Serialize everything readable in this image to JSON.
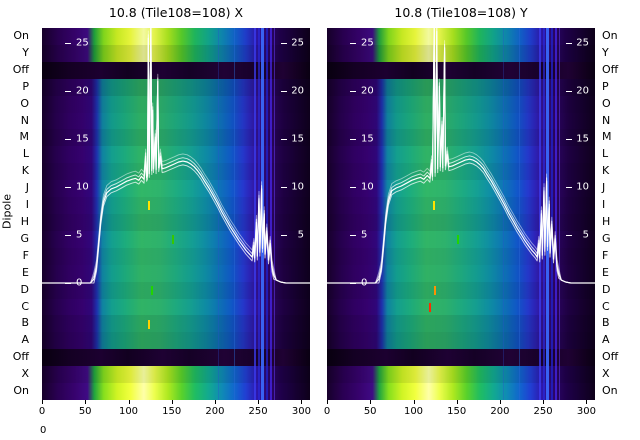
{
  "ylabel": "Dipole",
  "axes_extra": {
    "stray_zero_label": "0"
  },
  "chart_data": {
    "type": "heatmap",
    "description": "Per-dipole waterfall spectra with overlaid white bandpass curves for tile 10.8 (Tile108), X and Y polarisations",
    "x_axis": {
      "ticks": [
        0,
        50,
        100,
        150,
        200,
        250,
        300
      ],
      "range": [
        0,
        310
      ]
    },
    "db_ticks": [
      25,
      20,
      15,
      10,
      5,
      0
    ],
    "panels": [
      {
        "id": "x",
        "title": "10.8 (Tile108=108) X",
        "curve": [
          [
            0,
            0
          ],
          [
            56,
            0
          ],
          [
            60,
            0.4
          ],
          [
            63,
            1.6
          ],
          [
            65,
            3.5
          ],
          [
            68,
            6.5
          ],
          [
            71,
            8.4
          ],
          [
            75,
            9.4
          ],
          [
            80,
            9.8
          ],
          [
            86,
            10.0
          ],
          [
            92,
            10.3
          ],
          [
            98,
            10.6
          ],
          [
            104,
            10.8
          ],
          [
            108,
            10.9
          ],
          [
            112,
            10.7
          ],
          [
            115,
            11.1
          ],
          [
            118,
            10.8
          ],
          [
            120,
            13.2
          ],
          [
            121,
            11.0
          ],
          [
            122,
            11.2
          ],
          [
            123,
            25.5
          ],
          [
            124,
            11.4
          ],
          [
            126,
            26.8
          ],
          [
            127,
            11.7
          ],
          [
            128,
            18.0
          ],
          [
            129,
            11.9
          ],
          [
            131,
            15.2
          ],
          [
            132,
            11.8
          ],
          [
            134,
            21.0
          ],
          [
            135,
            12.0
          ],
          [
            137,
            13.2
          ],
          [
            139,
            11.9
          ],
          [
            143,
            12.0
          ],
          [
            148,
            12.2
          ],
          [
            153,
            12.4
          ],
          [
            158,
            12.6
          ],
          [
            163,
            12.7
          ],
          [
            168,
            12.6
          ],
          [
            172,
            12.4
          ],
          [
            176,
            12.1
          ],
          [
            180,
            11.7
          ],
          [
            184,
            11.2
          ],
          [
            188,
            10.6
          ],
          [
            193,
            9.9
          ],
          [
            198,
            9.1
          ],
          [
            203,
            8.3
          ],
          [
            208,
            7.4
          ],
          [
            213,
            6.6
          ],
          [
            218,
            5.8
          ],
          [
            223,
            5.1
          ],
          [
            228,
            4.4
          ],
          [
            232,
            3.9
          ],
          [
            236,
            3.4
          ],
          [
            240,
            3.0
          ],
          [
            243,
            2.7
          ],
          [
            245,
            3.9
          ],
          [
            246,
            2.6
          ],
          [
            248,
            6.3
          ],
          [
            249,
            2.8
          ],
          [
            251,
            8.8
          ],
          [
            252,
            3.2
          ],
          [
            254,
            9.8
          ],
          [
            255,
            3.6
          ],
          [
            257,
            7.2
          ],
          [
            258,
            3.0
          ],
          [
            260,
            5.4
          ],
          [
            262,
            2.4
          ],
          [
            264,
            4.1
          ],
          [
            266,
            1.6
          ],
          [
            268,
            0.8
          ],
          [
            271,
            0.3
          ],
          [
            276,
            0.1
          ],
          [
            282,
            0
          ],
          [
            310,
            0
          ]
        ],
        "marks": [
          {
            "ch": 123,
            "row": 10,
            "color": "#ffe300"
          },
          {
            "ch": 123,
            "row": 17,
            "color": "#ffd000"
          },
          {
            "ch": 126,
            "row": 15,
            "color": "#22d400"
          },
          {
            "ch": 150,
            "row": 12,
            "color": "#35c800"
          }
        ]
      },
      {
        "id": "y",
        "title": "10.8 (Tile108=108) Y",
        "curve": [
          [
            0,
            0
          ],
          [
            56,
            0
          ],
          [
            60,
            0.4
          ],
          [
            63,
            1.6
          ],
          [
            65,
            3.5
          ],
          [
            68,
            6.6
          ],
          [
            71,
            8.5
          ],
          [
            75,
            9.6
          ],
          [
            80,
            9.9
          ],
          [
            86,
            10.1
          ],
          [
            92,
            10.4
          ],
          [
            98,
            10.7
          ],
          [
            104,
            10.9
          ],
          [
            108,
            11.0
          ],
          [
            112,
            10.8
          ],
          [
            116,
            11.2
          ],
          [
            119,
            10.9
          ],
          [
            121,
            12.5
          ],
          [
            122,
            11.1
          ],
          [
            124,
            26.8
          ],
          [
            125,
            11.5
          ],
          [
            127,
            26.2
          ],
          [
            128,
            11.9
          ],
          [
            130,
            20.5
          ],
          [
            131,
            12.1
          ],
          [
            133,
            16.5
          ],
          [
            134,
            12.0
          ],
          [
            136,
            24.5
          ],
          [
            137,
            12.2
          ],
          [
            139,
            13.4
          ],
          [
            141,
            12.1
          ],
          [
            145,
            12.2
          ],
          [
            150,
            12.4
          ],
          [
            155,
            12.6
          ],
          [
            160,
            12.8
          ],
          [
            165,
            12.9
          ],
          [
            169,
            12.8
          ],
          [
            173,
            12.6
          ],
          [
            177,
            12.3
          ],
          [
            181,
            11.9
          ],
          [
            185,
            11.3
          ],
          [
            190,
            10.6
          ],
          [
            195,
            9.8
          ],
          [
            200,
            9.0
          ],
          [
            205,
            8.2
          ],
          [
            210,
            7.3
          ],
          [
            215,
            6.5
          ],
          [
            220,
            5.7
          ],
          [
            225,
            5.0
          ],
          [
            229,
            4.4
          ],
          [
            233,
            3.9
          ],
          [
            237,
            3.4
          ],
          [
            241,
            3.0
          ],
          [
            243,
            2.7
          ],
          [
            245,
            4.1
          ],
          [
            246,
            2.6
          ],
          [
            248,
            7.2
          ],
          [
            249,
            2.9
          ],
          [
            251,
            9.6
          ],
          [
            252,
            3.3
          ],
          [
            254,
            10.6
          ],
          [
            255,
            3.8
          ],
          [
            257,
            8.2
          ],
          [
            258,
            3.1
          ],
          [
            260,
            6.1
          ],
          [
            262,
            2.5
          ],
          [
            264,
            4.6
          ],
          [
            266,
            1.7
          ],
          [
            268,
            0.9
          ],
          [
            271,
            0.3
          ],
          [
            276,
            0.1
          ],
          [
            282,
            0
          ],
          [
            310,
            0
          ]
        ],
        "marks": [
          {
            "ch": 123,
            "row": 10,
            "color": "#ffe300"
          },
          {
            "ch": 118,
            "row": 16,
            "color": "#ff2a00"
          },
          {
            "ch": 124,
            "row": 15,
            "color": "#ff9100"
          },
          {
            "ch": 150,
            "row": 12,
            "color": "#22d400"
          }
        ]
      }
    ],
    "heatmap": {
      "rows": [
        {
          "label": "On",
          "type": "bright",
          "shade": 1.0
        },
        {
          "label": "Y",
          "type": "bright",
          "shade": 0.9
        },
        {
          "label": "Off",
          "type": "off",
          "shade": 1.0
        },
        {
          "label": "P",
          "type": "mid",
          "shade": 0.88
        },
        {
          "label": "O",
          "type": "mid",
          "shade": 0.97
        },
        {
          "label": "N",
          "type": "mid",
          "shade": 1.0
        },
        {
          "label": "M",
          "type": "mid",
          "shade": 0.94
        },
        {
          "label": "L",
          "type": "mid",
          "shade": 1.03
        },
        {
          "label": "K",
          "type": "mid",
          "shade": 0.98
        },
        {
          "label": "J",
          "type": "mid",
          "shade": 1.05
        },
        {
          "label": "I",
          "type": "mid",
          "shade": 1.0
        },
        {
          "label": "H",
          "type": "mid",
          "shade": 0.95
        },
        {
          "label": "G",
          "type": "mid",
          "shade": 1.04
        },
        {
          "label": "F",
          "type": "mid",
          "shade": 0.99
        },
        {
          "label": "E",
          "type": "mid",
          "shade": 1.02
        },
        {
          "label": "D",
          "type": "mid",
          "shade": 0.96
        },
        {
          "label": "C",
          "type": "mid",
          "shade": 1.03
        },
        {
          "label": "B",
          "type": "mid",
          "shade": 0.94
        },
        {
          "label": "A",
          "type": "mid",
          "shade": 0.9
        },
        {
          "label": "Off",
          "type": "off",
          "shade": 1.0
        },
        {
          "label": "X",
          "type": "bright",
          "shade": 0.96
        },
        {
          "label": "On",
          "type": "bright",
          "shade": 1.05
        }
      ],
      "gradients": {
        "mid": [
          [
            0.0,
            "#160029"
          ],
          [
            0.05,
            "#24004a"
          ],
          [
            0.1,
            "#2e005e"
          ],
          [
            0.15,
            "#33016b"
          ],
          [
            0.185,
            "#2e0676"
          ],
          [
            0.205,
            "#1d30a8"
          ],
          [
            0.225,
            "#0f7e9c"
          ],
          [
            0.26,
            "#12998a"
          ],
          [
            0.31,
            "#1ba578"
          ],
          [
            0.37,
            "#2fae62"
          ],
          [
            0.44,
            "#2cab68"
          ],
          [
            0.5,
            "#1da47a"
          ],
          [
            0.56,
            "#13988d"
          ],
          [
            0.61,
            "#0e879e"
          ],
          [
            0.66,
            "#0d6fae"
          ],
          [
            0.71,
            "#1053c0"
          ],
          [
            0.75,
            "#2336c4"
          ],
          [
            0.78,
            "#2c1fae"
          ],
          [
            0.81,
            "#320f84"
          ],
          [
            0.85,
            "#2a0560"
          ],
          [
            0.9,
            "#1d0040"
          ],
          [
            1.0,
            "#0e001c"
          ]
        ],
        "bright": [
          [
            0.0,
            "#160029"
          ],
          [
            0.06,
            "#28004f"
          ],
          [
            0.12,
            "#340268"
          ],
          [
            0.17,
            "#3c0a7e"
          ],
          [
            0.195,
            "#1e9c3c"
          ],
          [
            0.23,
            "#7fd41c"
          ],
          [
            0.28,
            "#c6e822"
          ],
          [
            0.33,
            "#e6f43c"
          ],
          [
            0.38,
            "#f2f9a0"
          ],
          [
            0.42,
            "#e2f24a"
          ],
          [
            0.47,
            "#a6de1e"
          ],
          [
            0.52,
            "#57c828"
          ],
          [
            0.57,
            "#1fb45c"
          ],
          [
            0.62,
            "#11a288"
          ],
          [
            0.67,
            "#0e85ab"
          ],
          [
            0.72,
            "#1060c4"
          ],
          [
            0.76,
            "#1f3cc8"
          ],
          [
            0.8,
            "#2b18a6"
          ],
          [
            0.84,
            "#2a0768"
          ],
          [
            0.89,
            "#1e0048"
          ],
          [
            1.0,
            "#0d0019"
          ]
        ],
        "off": [
          [
            0.0,
            "#08000f"
          ],
          [
            0.1,
            "#140023"
          ],
          [
            0.22,
            "#1c0030"
          ],
          [
            0.32,
            "#120020"
          ],
          [
            0.45,
            "#1e0133"
          ],
          [
            0.55,
            "#150126"
          ],
          [
            0.68,
            "#200235"
          ],
          [
            0.8,
            "#17012a"
          ],
          [
            0.9,
            "#1f0133"
          ],
          [
            1.0,
            "#0a0012"
          ]
        ]
      },
      "stripes": [
        {
          "pos": 0.655,
          "w": 1,
          "color": "#2a50d0",
          "op": 0.3
        },
        {
          "pos": 0.715,
          "w": 1,
          "color": "#2b6bd4",
          "op": 0.45
        },
        {
          "pos": 0.79,
          "w": 2,
          "color": "#3c3cf0",
          "op": 0.75
        },
        {
          "pos": 0.804,
          "w": 2,
          "color": "#2a2ae0",
          "op": 0.65
        },
        {
          "pos": 0.818,
          "w": 3,
          "color": "#3b6bff",
          "op": 0.9
        },
        {
          "pos": 0.836,
          "w": 2,
          "color": "#2020c8",
          "op": 0.8
        },
        {
          "pos": 0.85,
          "w": 2,
          "color": "#4b2bff",
          "op": 0.65
        },
        {
          "pos": 0.866,
          "w": 1,
          "color": "#6a3bff",
          "op": 0.5
        }
      ]
    },
    "line_color": "#ffffff"
  }
}
